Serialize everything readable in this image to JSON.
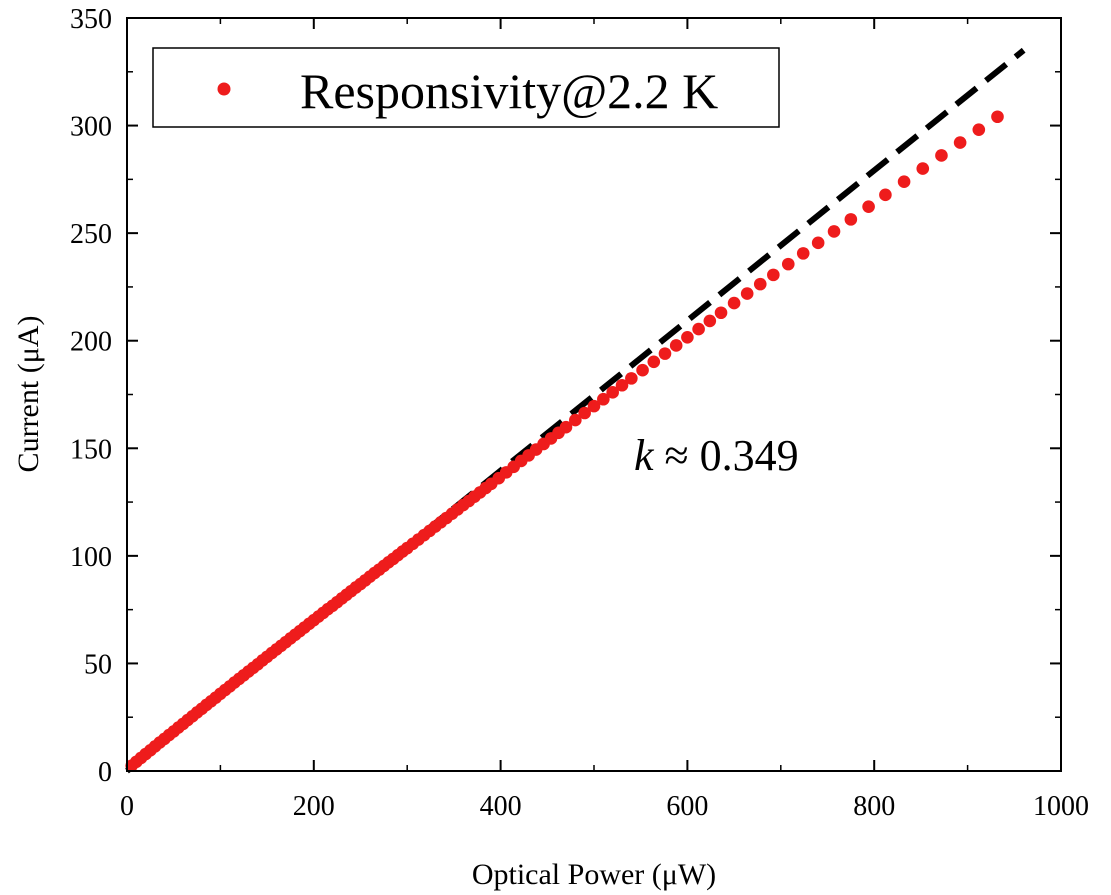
{
  "chart_data": {
    "type": "scatter",
    "xlabel": "Optical Power (μW)",
    "ylabel": "Current  (μA)",
    "xlim": [
      0,
      1000
    ],
    "ylim": [
      0,
      350
    ],
    "xticks": [
      0,
      200,
      400,
      600,
      800,
      1000
    ],
    "yticks": [
      0,
      50,
      100,
      150,
      200,
      250,
      300,
      350
    ],
    "xtick_labels": [
      "0",
      "200",
      "400",
      "600",
      "800",
      "1000"
    ],
    "ytick_labels": [
      "0",
      "50",
      "100",
      "150",
      "200",
      "250",
      "300",
      "350"
    ],
    "grid": false,
    "legend_position": "top-left",
    "annotation": {
      "symbol": "k",
      "text": " ≈ 0.349"
    },
    "series": [
      {
        "name": "Responsivity@2.2 K",
        "style": "markers",
        "color": "#ee1c1c",
        "x": [
          5,
          10,
          15,
          20,
          25,
          30,
          35,
          40,
          45,
          50,
          55,
          60,
          65,
          70,
          75,
          80,
          85,
          90,
          95,
          100,
          105,
          110,
          115,
          120,
          125,
          130,
          135,
          140,
          145,
          150,
          155,
          160,
          165,
          170,
          175,
          180,
          185,
          190,
          195,
          200,
          205,
          210,
          215,
          220,
          225,
          230,
          235,
          240,
          245,
          250,
          255,
          260,
          265,
          270,
          275,
          280,
          285,
          290,
          295,
          300,
          306,
          312,
          318,
          324,
          330,
          336,
          342,
          348,
          354,
          360,
          366,
          372,
          378,
          384,
          390,
          398,
          406,
          414,
          422,
          430,
          438,
          446,
          454,
          462,
          470,
          480,
          490,
          500,
          510,
          520,
          530,
          540,
          552,
          564,
          576,
          588,
          600,
          612,
          624,
          636,
          650,
          664,
          678,
          692,
          708,
          724,
          740,
          757,
          775,
          794,
          812,
          832,
          852,
          872,
          892,
          912,
          932
        ],
        "y": [
          2.5,
          4.3,
          6.1,
          7.9,
          9.6,
          11.4,
          13.2,
          14.9,
          16.7,
          18.4,
          20.2,
          21.9,
          23.7,
          25.4,
          27.2,
          28.9,
          30.7,
          32.4,
          34.1,
          35.9,
          37.6,
          39.3,
          41.1,
          42.8,
          44.5,
          46.2,
          47.9,
          49.6,
          51.4,
          53.1,
          54.8,
          56.5,
          58.2,
          59.9,
          61.6,
          63.3,
          65.0,
          66.7,
          68.4,
          70.1,
          71.8,
          73.5,
          75.2,
          76.8,
          78.5,
          80.2,
          81.9,
          83.6,
          85.3,
          86.9,
          88.6,
          90.3,
          92.0,
          93.6,
          95.3,
          97.0,
          98.6,
          100.3,
          102.0,
          103.6,
          105.6,
          107.6,
          109.6,
          111.6,
          113.6,
          115.6,
          117.6,
          119.6,
          121.6,
          123.6,
          125.5,
          127.5,
          129.5,
          131.5,
          133.5,
          136.1,
          138.8,
          141.4,
          144.1,
          146.7,
          149.4,
          152.0,
          154.6,
          157.2,
          159.8,
          163.1,
          166.4,
          169.6,
          172.8,
          176.0,
          179.3,
          182.5,
          186.3,
          190.2,
          194.0,
          197.8,
          201.6,
          205.4,
          209.2,
          213.0,
          217.5,
          221.9,
          226.3,
          230.6,
          235.6,
          240.6,
          245.5,
          250.8,
          256.4,
          262.3,
          267.8,
          273.9,
          280.0,
          286.1,
          292.1,
          298.1,
          304.1
        ]
      },
      {
        "name": "",
        "style": "dashed-line",
        "color": "#000000",
        "x": [
          0,
          960
        ],
        "y": [
          0,
          335
        ]
      }
    ]
  }
}
